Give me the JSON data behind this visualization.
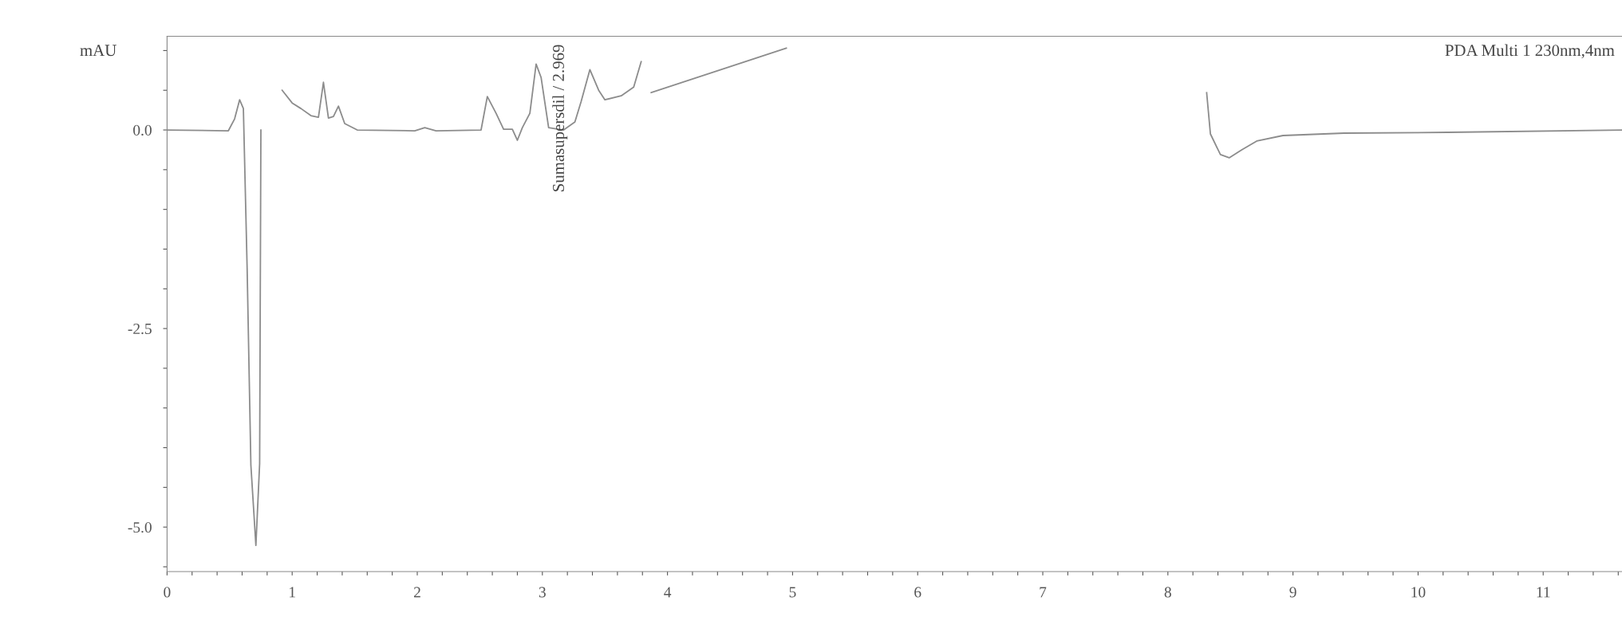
{
  "chart_data": {
    "type": "line",
    "ylabel": "mAU",
    "annotations": [
      "Sumasupersdil / 2.969",
      "PDA Multi 1 230nm,4nm"
    ],
    "x": [
      0,
      0.49,
      0.54,
      0.58,
      0.61,
      0.64,
      0.67,
      0.71,
      0.74,
      0.75,
      0.76,
      0.8,
      0.88,
      0.92,
      1.0,
      1.07,
      1.15,
      1.21,
      1.25,
      1.29,
      1.33,
      1.37,
      1.42,
      1.52,
      1.98,
      2.06,
      2.15,
      2.51,
      2.56,
      2.63,
      2.69,
      2.76,
      2.8,
      2.84,
      2.9,
      2.95,
      2.99,
      3.05,
      3.17,
      3.26,
      3.31,
      3.38,
      3.45,
      3.5,
      3.63,
      3.73,
      3.79,
      3.8,
      3.81,
      3.83,
      3.87,
      4.95,
      5.2,
      5.5,
      8.3,
      8.31,
      8.34,
      8.42,
      8.49,
      8.59,
      8.71,
      8.92,
      9.41,
      10.24,
      11.63
    ],
    "series": [
      {
        "color": "#8c8c8c",
        "values": [
          0,
          -0.01,
          0.14,
          0.38,
          0.27,
          -1.74,
          -4.22,
          -5.23,
          -4.2,
          0.0,
          null,
          null,
          null,
          0.5,
          0.34,
          0.27,
          0.18,
          0.16,
          0.6,
          0.15,
          0.17,
          0.3,
          0.08,
          0.0,
          -0.01,
          0.03,
          -0.01,
          0.0,
          0.42,
          0.21,
          0.01,
          0.01,
          -0.13,
          0.03,
          0.21,
          0.83,
          0.66,
          0.03,
          0.0,
          0.1,
          0.36,
          0.76,
          0.5,
          0.38,
          0.43,
          0.54,
          0.86,
          null,
          null,
          null,
          0.47,
          1.03,
          null,
          null,
          null,
          0.47,
          -0.05,
          -0.31,
          -0.35,
          -0.25,
          -0.14,
          -0.07,
          -0.04,
          -0.03,
          0.0
        ]
      }
    ],
    "xlim": [
      0,
      11.63
    ],
    "ylim": [
      -5.56,
      1.18
    ],
    "xticks": [
      0,
      1,
      2,
      3,
      4,
      5,
      6,
      7,
      8,
      9,
      10,
      11,
      {
        "value": 0.2,
        "label": null
      },
      {
        "value": 0.4,
        "label": null
      },
      {
        "value": 0.6,
        "label": null
      },
      {
        "value": 0.8,
        "label": null
      },
      {
        "value": 1.2,
        "label": null
      },
      {
        "value": 1.4,
        "label": null
      },
      {
        "value": 1.6,
        "label": null
      },
      {
        "value": 1.8,
        "label": null
      },
      {
        "value": 2.2,
        "label": null
      },
      {
        "value": 2.4,
        "label": null
      },
      {
        "value": 2.6,
        "label": null
      },
      {
        "value": 2.8,
        "label": null
      },
      {
        "value": 3.2,
        "label": null
      },
      {
        "value": 3.4,
        "label": null
      },
      {
        "value": 3.6,
        "label": null
      },
      {
        "value": 3.8,
        "label": null
      },
      {
        "value": 4.2,
        "label": null
      },
      {
        "value": 4.4,
        "label": null
      },
      {
        "value": 4.6,
        "label": null
      },
      {
        "value": 4.8,
        "label": null
      },
      {
        "value": 5.2,
        "label": null
      },
      {
        "value": 5.4,
        "label": null
      },
      {
        "value": 5.6,
        "label": null
      },
      {
        "value": 5.8,
        "label": null
      },
      {
        "value": 6.2,
        "label": null
      },
      {
        "value": 6.4,
        "label": null
      },
      {
        "value": 6.6,
        "label": null
      },
      {
        "value": 6.8,
        "label": null
      },
      {
        "value": 7.2,
        "label": null
      },
      {
        "value": 7.4,
        "label": null
      },
      {
        "value": 7.6,
        "label": null
      },
      {
        "value": 7.8,
        "label": null
      },
      {
        "value": 8.2,
        "label": null
      },
      {
        "value": 8.4,
        "label": null
      },
      {
        "value": 8.6,
        "label": null
      },
      {
        "value": 8.8,
        "label": null
      },
      {
        "value": 9.2,
        "label": null
      },
      {
        "value": 9.4,
        "label": null
      },
      {
        "value": 9.6,
        "label": null
      },
      {
        "value": 9.8,
        "label": null
      },
      {
        "value": 10.2,
        "label": null
      },
      {
        "value": 10.4,
        "label": null
      },
      {
        "value": 10.6,
        "label": null
      },
      {
        "value": 10.8,
        "label": null
      },
      {
        "value": 11.2,
        "label": null
      },
      {
        "value": 11.4,
        "label": null
      },
      {
        "value": 11.6,
        "label": null
      }
    ],
    "yticks": [
      {
        "value": 0,
        "label": "0.0"
      },
      {
        "value": -2.5,
        "label": "-2.5"
      },
      {
        "value": -5.0,
        "label": "-5.0"
      },
      {
        "value": 1.0,
        "label": null
      },
      {
        "value": 0.5,
        "label": null
      },
      {
        "value": -0.5,
        "label": null
      },
      {
        "value": -1.0,
        "label": null
      },
      {
        "value": -1.5,
        "label": null
      },
      {
        "value": -2.0,
        "label": null
      },
      {
        "value": -3.0,
        "label": null
      },
      {
        "value": -3.5,
        "label": null
      },
      {
        "value": -4.0,
        "label": null
      },
      {
        "value": -4.5,
        "label": null
      },
      {
        "value": -5.5,
        "label": null
      }
    ],
    "grid": false,
    "legend": false,
    "line_style": "solid"
  }
}
